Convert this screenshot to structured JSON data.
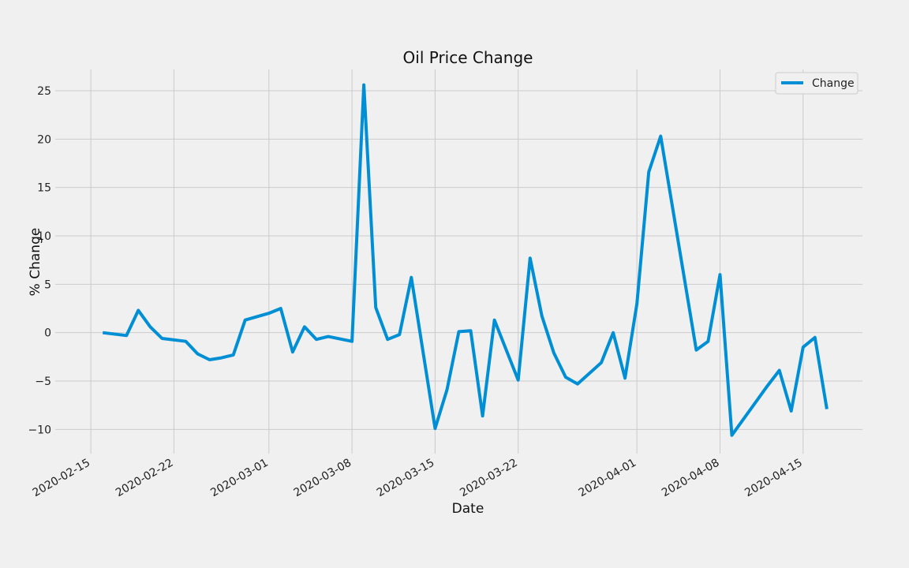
{
  "chart_data": {
    "type": "line",
    "title": "Oil Price Change",
    "xlabel": "Date",
    "ylabel": "% Change",
    "grid": true,
    "legend_position": "top-right",
    "line_color": "#008fd5",
    "x_range": [
      "2020-02-12",
      "2020-04-20"
    ],
    "ylim": [
      -12.5,
      27.2
    ],
    "x_ticks": [
      "2020-02-15",
      "2020-02-22",
      "2020-03-01",
      "2020-03-08",
      "2020-03-15",
      "2020-03-22",
      "2020-04-01",
      "2020-04-08",
      "2020-04-15"
    ],
    "y_ticks": [
      -10,
      -5,
      0,
      5,
      10,
      15,
      20,
      25
    ],
    "y_tick_labels": [
      "−10",
      "−5",
      "0",
      "5",
      "10",
      "15",
      "20",
      "25"
    ],
    "series": [
      {
        "name": "Change",
        "x": [
          "2020-02-16",
          "2020-02-18",
          "2020-02-19",
          "2020-02-20",
          "2020-02-21",
          "2020-02-23",
          "2020-02-24",
          "2020-02-25",
          "2020-02-26",
          "2020-02-27",
          "2020-02-28",
          "2020-03-01",
          "2020-03-02",
          "2020-03-03",
          "2020-03-04",
          "2020-03-05",
          "2020-03-06",
          "2020-03-08",
          "2020-03-09",
          "2020-03-10",
          "2020-03-11",
          "2020-03-12",
          "2020-03-13",
          "2020-03-15",
          "2020-03-16",
          "2020-03-17",
          "2020-03-18",
          "2020-03-19",
          "2020-03-20",
          "2020-03-22",
          "2020-03-23",
          "2020-03-24",
          "2020-03-25",
          "2020-03-26",
          "2020-03-27",
          "2020-03-29",
          "2020-03-30",
          "2020-03-31",
          "2020-04-01",
          "2020-04-02",
          "2020-04-03",
          "2020-04-06",
          "2020-04-07",
          "2020-04-08",
          "2020-04-09",
          "2020-04-12",
          "2020-04-13",
          "2020-04-14",
          "2020-04-15",
          "2020-04-16",
          "2020-04-17"
        ],
        "values": [
          0.0,
          -0.3,
          2.3,
          0.6,
          -0.6,
          -0.9,
          -2.2,
          -2.8,
          -2.6,
          -2.3,
          1.3,
          2.0,
          2.5,
          -2.0,
          0.6,
          -0.7,
          -0.4,
          -0.9,
          25.6,
          2.6,
          -0.7,
          -0.2,
          5.7,
          -9.9,
          -5.9,
          0.1,
          0.2,
          -8.6,
          1.3,
          -4.9,
          7.7,
          1.7,
          -2.1,
          -4.6,
          -5.3,
          -3.1,
          0.0,
          -4.7,
          3.0,
          16.6,
          20.3,
          -1.8,
          -0.9,
          6.0,
          -10.6,
          -5.5,
          -3.9,
          -8.1,
          -1.5,
          -0.5,
          -7.9
        ]
      }
    ]
  }
}
